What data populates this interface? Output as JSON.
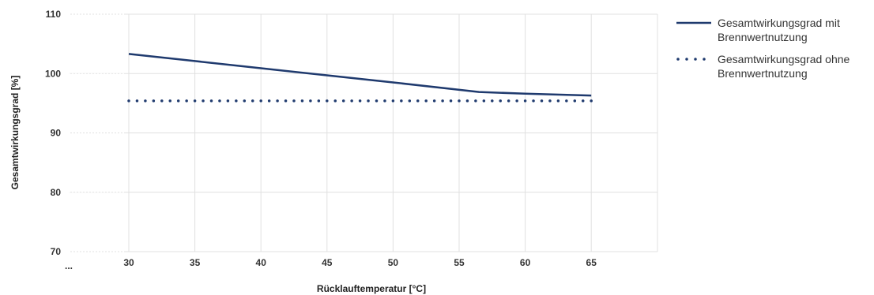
{
  "chart_data": {
    "type": "line",
    "xlabel": "Rücklauftemperatur [°C]",
    "ylabel": "Gesamtwirkungsgrad [%]",
    "x_axis_break_label": "...",
    "xlim": [
      25,
      70
    ],
    "ylim": [
      70,
      110
    ],
    "x_ticks": [
      30,
      35,
      40,
      45,
      50,
      55,
      60,
      65
    ],
    "y_ticks": [
      70,
      80,
      90,
      100,
      110
    ],
    "grid": true,
    "legend_position": "right",
    "series": [
      {
        "name": "Gesamtwirkungsgrad mit Brennwertnutzung",
        "style": "solid",
        "color": "#1f3a6e",
        "x": [
          30,
          35,
          40,
          45,
          50,
          56.5,
          60,
          65
        ],
        "y": [
          103.3,
          102.1,
          100.9,
          99.7,
          98.5,
          96.9,
          96.6,
          96.3
        ]
      },
      {
        "name": "Gesamtwirkungsgrad ohne Brennwertnutzung",
        "style": "dotted",
        "color": "#1f3a6e",
        "x": [
          30,
          35,
          40,
          45,
          50,
          55,
          60,
          65
        ],
        "y": [
          95.4,
          95.4,
          95.4,
          95.4,
          95.4,
          95.4,
          95.4,
          95.4
        ]
      }
    ]
  }
}
